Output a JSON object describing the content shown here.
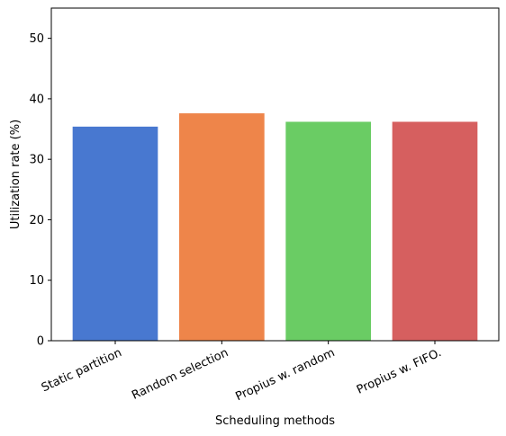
{
  "chart_data": {
    "type": "bar",
    "categories": [
      "Static partition",
      "Random selection",
      "Propius w. random",
      "Propius w. FIFO."
    ],
    "values": [
      35.4,
      37.6,
      36.2,
      36.2
    ],
    "colors": [
      "#4878d0",
      "#ee854a",
      "#6acc64",
      "#d65f5f"
    ],
    "title": "",
    "xlabel": "Scheduling methods",
    "ylabel": "Utilization rate (%)",
    "ylim": [
      0,
      55
    ],
    "yticks": [
      0,
      10,
      20,
      30,
      40,
      50
    ],
    "grid": false,
    "legend": "none"
  }
}
